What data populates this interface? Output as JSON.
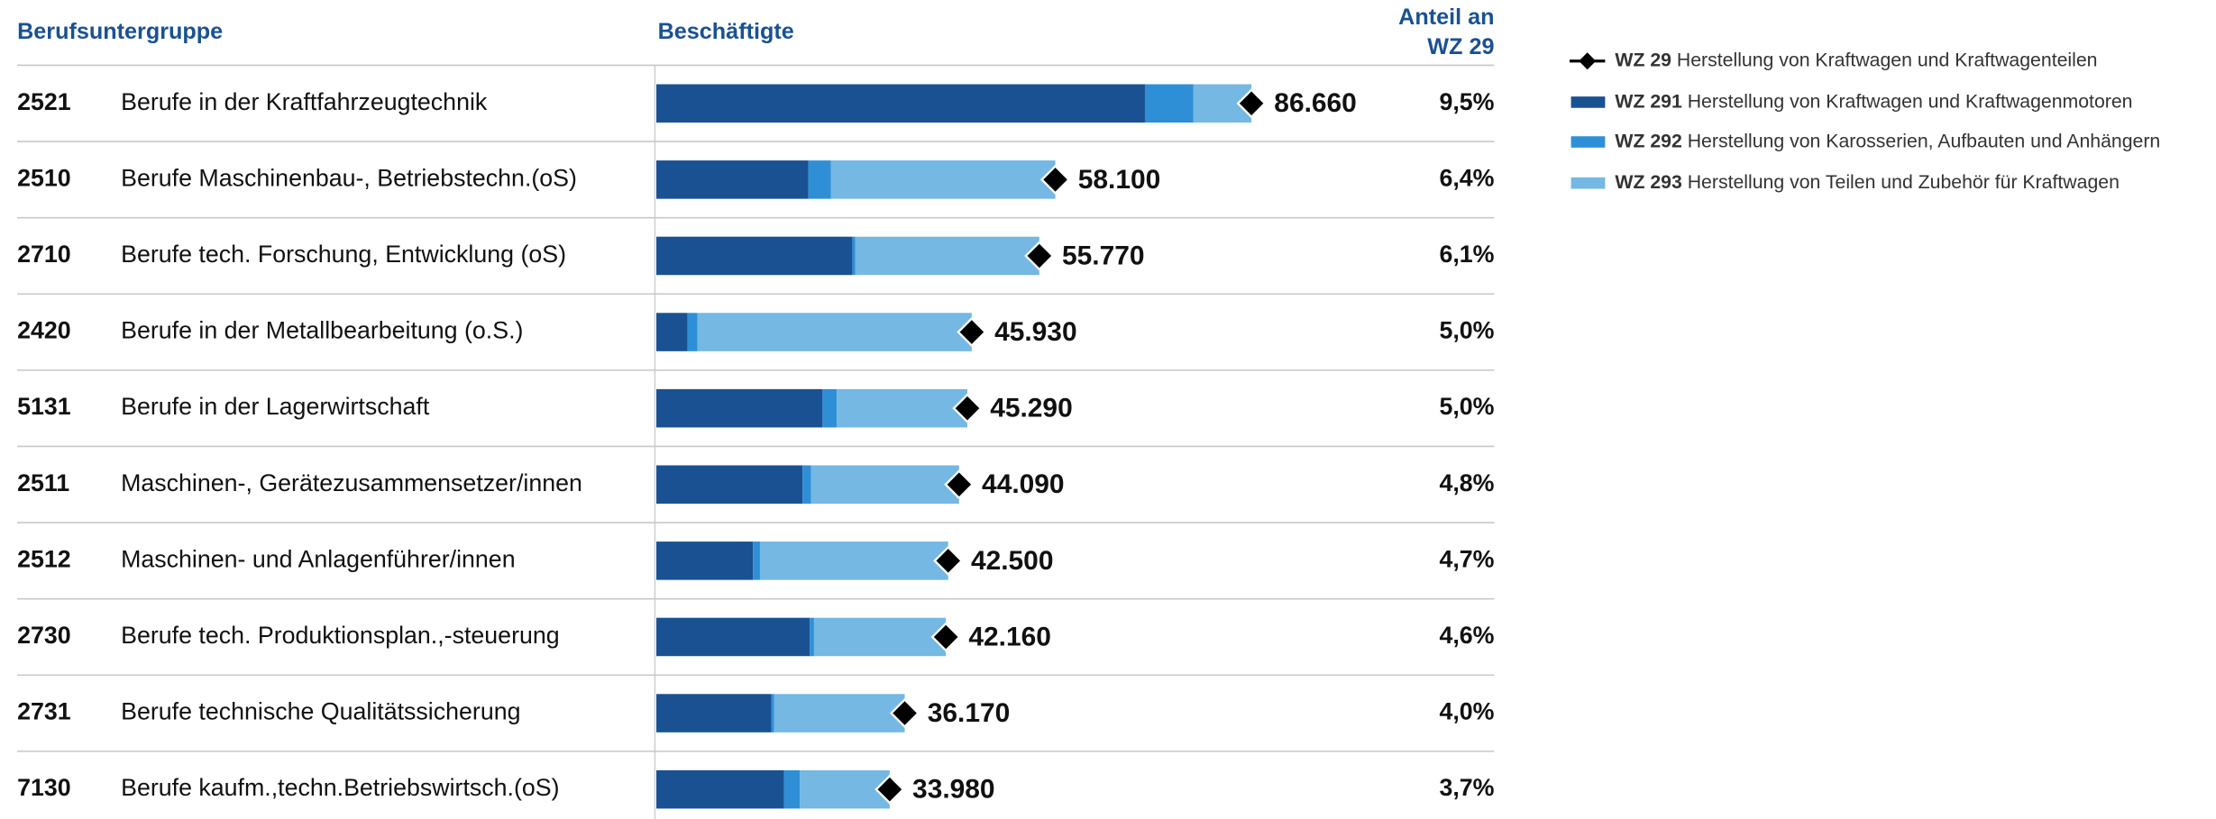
{
  "chart_data": {
    "type": "bar",
    "stacked": true,
    "orientation": "horizontal",
    "headers": {
      "group": "Berufsuntergruppe",
      "value": "Beschäftigte",
      "share": [
        "Anteil an",
        "WZ 29"
      ]
    },
    "codes": [
      "2521",
      "2510",
      "2710",
      "2420",
      "5131",
      "2511",
      "2512",
      "2730",
      "2731",
      "7130"
    ],
    "categories": [
      "Berufe in der Kraftfahrzeugtechnik",
      "Berufe Maschinenbau-, Betriebstechn.(oS)",
      "Berufe tech. Forschung, Entwicklung (oS)",
      "Berufe in der Metallbearbeitung (o.S.)",
      "Berufe in der Lagerwirtschaft",
      "Maschinen-, Gerätezusammensetzer/innen",
      "Maschinen- und Anlagenführer/innen",
      "Berufe tech. Produktionsplan.,-steuerung",
      "Berufe technische Qualitätssicherung",
      "Berufe kaufm.,techn.Betriebswirtsch.(oS)"
    ],
    "total": {
      "name": "WZ 29",
      "description": "Herstellung von Kraftwagen und Kraftwagenteilen",
      "color": "#000000",
      "values": [
        86660,
        58100,
        55770,
        45930,
        45290,
        44090,
        42500,
        42160,
        36170,
        33980
      ],
      "value_labels": [
        "86.660",
        "58.100",
        "55.770",
        "45.930",
        "45.290",
        "44.090",
        "42.500",
        "42.160",
        "36.170",
        "33.980"
      ]
    },
    "series": [
      {
        "name": "WZ 291",
        "description": "Herstellung von Kraftwagen und Kraftwagenmotoren",
        "color": "#1a5192",
        "values": [
          71150,
          22130,
          28540,
          4550,
          24200,
          21300,
          14060,
          22340,
          16750,
          18610
        ]
      },
      {
        "name": "WZ 292",
        "description": "Herstellung von Karosserien, Aufbauten und Anhängern",
        "color": "#2f8fd6",
        "values": [
          7030,
          3310,
          410,
          1450,
          2070,
          1240,
          1030,
          620,
          410,
          2270
        ]
      },
      {
        "name": "WZ 293",
        "description": "Herstellung von Teilen und Zubehör für Kraftwagen",
        "color": "#74b8e3",
        "values": [
          8480,
          32660,
          26820,
          39930,
          19020,
          21550,
          27410,
          19200,
          19010,
          13100
        ]
      }
    ],
    "shares": [
      9.5,
      6.4,
      6.1,
      5.0,
      5.0,
      4.8,
      4.7,
      4.6,
      4.0,
      3.7
    ],
    "share_labels": [
      "9,5%",
      "6,4%",
      "6,1%",
      "5,0%",
      "5,0%",
      "4,8%",
      "4,7%",
      "4,6%",
      "4,0%",
      "3,7%"
    ]
  }
}
